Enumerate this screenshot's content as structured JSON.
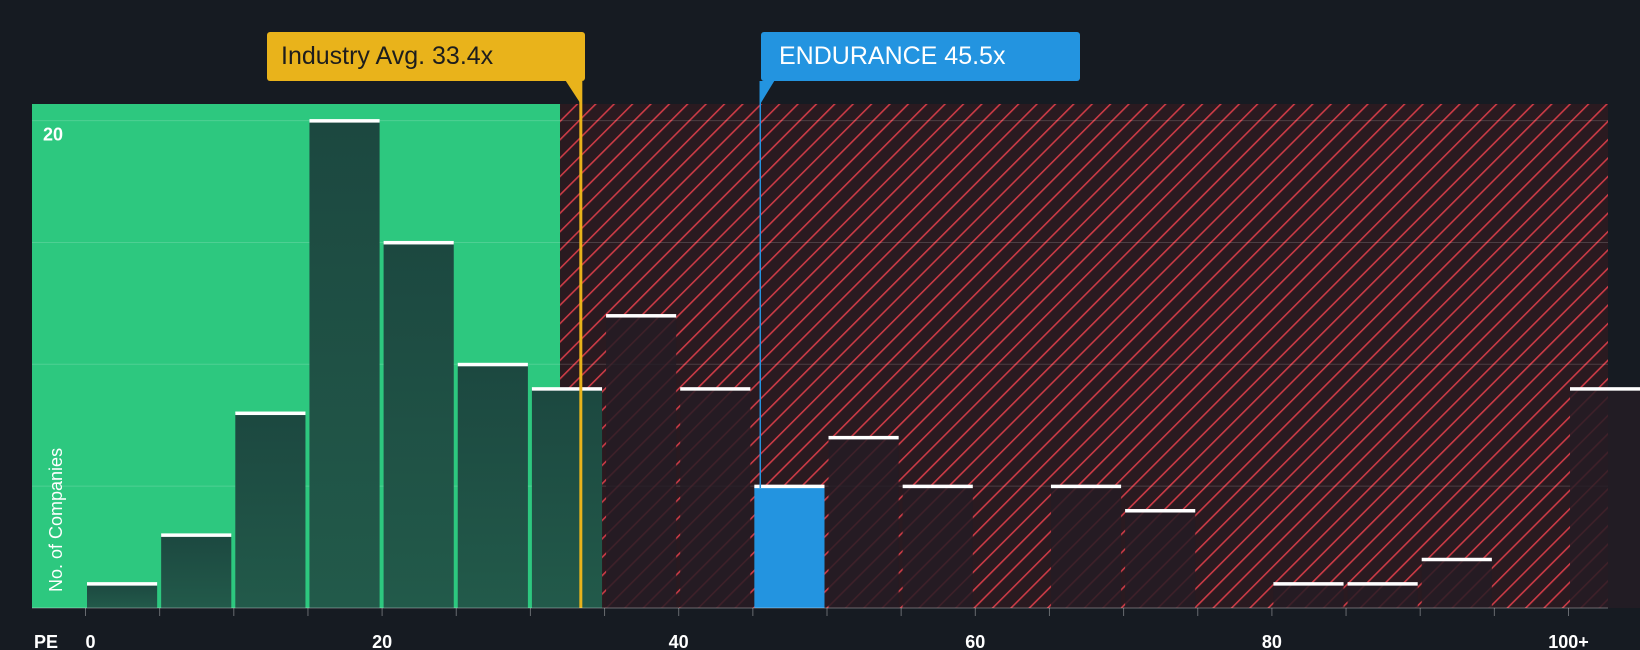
{
  "chart_data": {
    "type": "bar",
    "xlabel": "PE",
    "ylabel": "No. of Companies",
    "xlim": [
      0,
      102.5
    ],
    "ylim": [
      0,
      20.6
    ],
    "x_ticks": [
      {
        "value": 0,
        "label": "0"
      },
      {
        "value": 20,
        "label": "20"
      },
      {
        "value": 40,
        "label": "40"
      },
      {
        "value": 60,
        "label": "60"
      },
      {
        "value": 80,
        "label": "80"
      },
      {
        "value": 100,
        "label": "100+"
      }
    ],
    "y_ticks": [
      {
        "value": 20,
        "label": "20"
      }
    ],
    "gridlines_y": [
      5,
      10,
      15,
      20
    ],
    "bin_width": 5,
    "bins": [
      {
        "start": 0,
        "value": 1
      },
      {
        "start": 5,
        "value": 3
      },
      {
        "start": 10,
        "value": 8
      },
      {
        "start": 15,
        "value": 20
      },
      {
        "start": 20,
        "value": 15
      },
      {
        "start": 25,
        "value": 10
      },
      {
        "start": 30,
        "value": 9
      },
      {
        "start": 35,
        "value": 12
      },
      {
        "start": 40,
        "value": 9
      },
      {
        "start": 45,
        "value": 5
      },
      {
        "start": 50,
        "value": 7
      },
      {
        "start": 55,
        "value": 5
      },
      {
        "start": 60,
        "value": 0
      },
      {
        "start": 65,
        "value": 5
      },
      {
        "start": 70,
        "value": 4
      },
      {
        "start": 75,
        "value": 0
      },
      {
        "start": 80,
        "value": 1
      },
      {
        "start": 85,
        "value": 1
      },
      {
        "start": 90,
        "value": 2
      },
      {
        "start": 95,
        "value": 0
      },
      {
        "start": 100,
        "value": 9
      }
    ],
    "highlight_bin_start": 45,
    "fair_zone_end": 32,
    "industry_avg": {
      "value": 33.4,
      "label": "Industry Avg. 33.4x"
    },
    "company": {
      "name": "ENDURANCE",
      "value": 45.5,
      "label": "ENDURANCE 45.5x"
    },
    "grid": true,
    "colors": {
      "background": "#161b22",
      "fair_zone": "#2dc87f",
      "bar_fair": "#1e4a40",
      "bar_over": "#241c24",
      "bar_highlight": "#2394e0",
      "hatch": "#cc3b46",
      "over_zone_bg": "#2a1a20",
      "industry_line": "#e9b31b",
      "company_line": "#2394e0",
      "bar_cap": "#ffffff"
    }
  }
}
